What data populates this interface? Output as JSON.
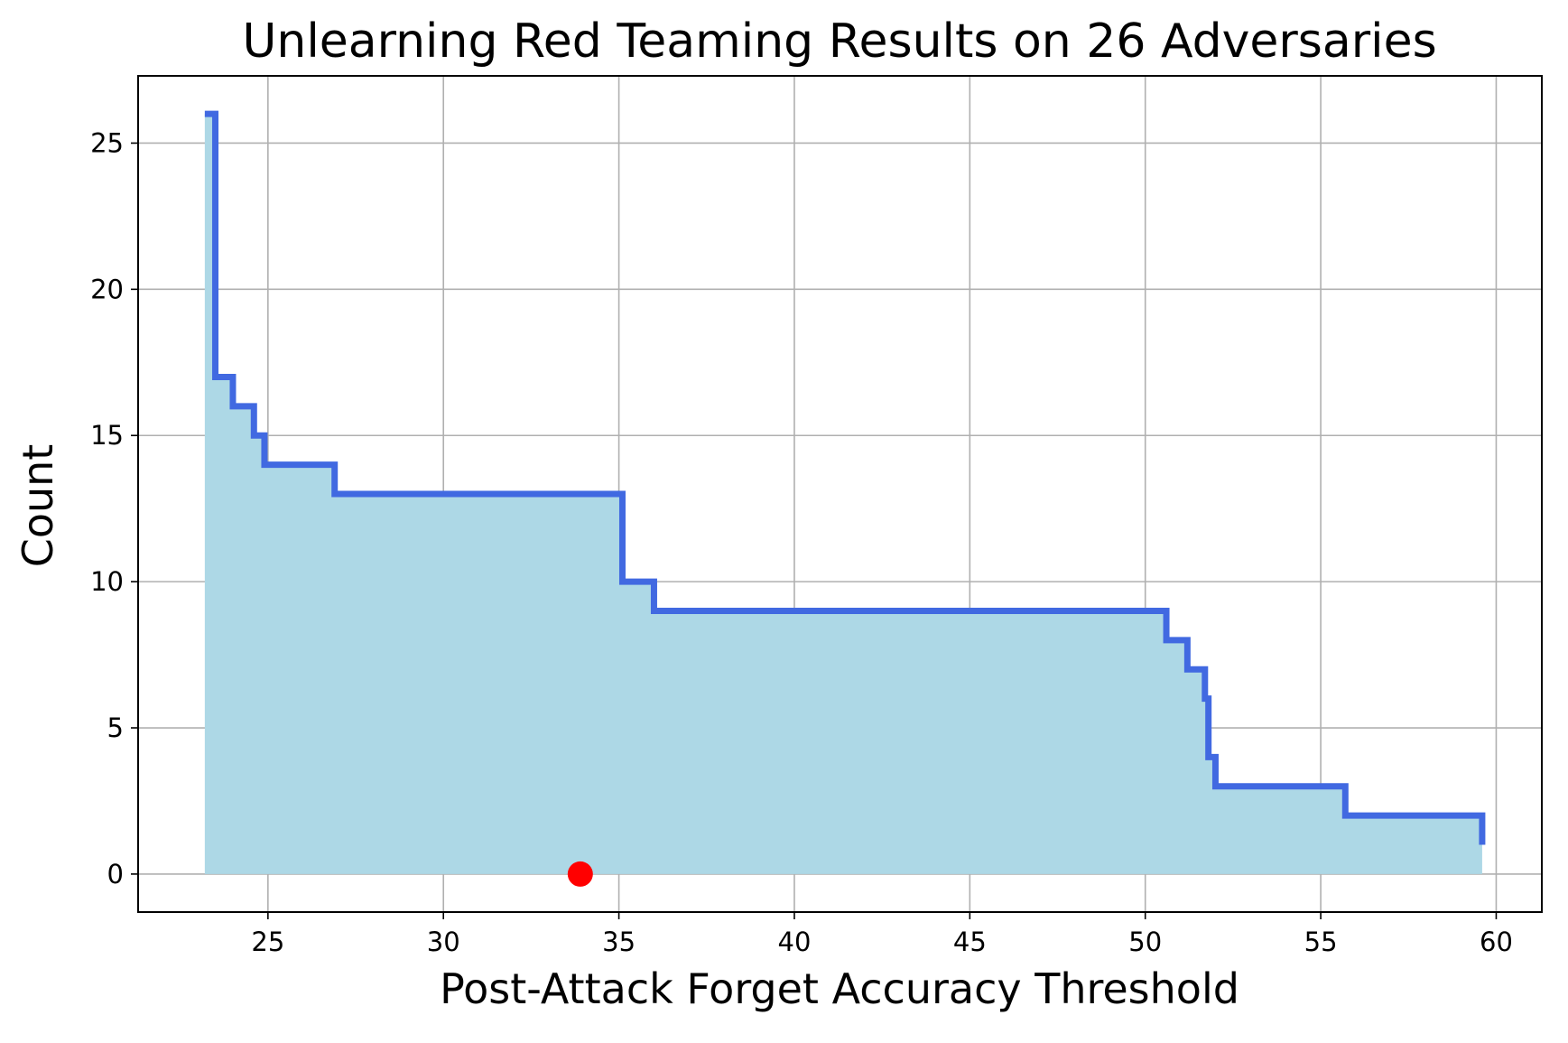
{
  "chart_data": {
    "type": "area",
    "title": "Unlearning Red Teaming Results on 26 Adversaries",
    "xlabel": "Post-Attack Forget Accuracy Threshold",
    "ylabel": "Count",
    "xlim": [
      21.3,
      61.3
    ],
    "ylim": [
      -1.3,
      27.3
    ],
    "xticks": [
      25,
      30,
      35,
      40,
      45,
      50,
      55,
      60
    ],
    "yticks": [
      0,
      5,
      10,
      15,
      20,
      25
    ],
    "grid": true,
    "series": [
      {
        "color": "#4169e1",
        "fill_color": "#add8e6",
        "steps": [
          {
            "x": 23.2,
            "y": 26
          },
          {
            "x": 23.5,
            "y": 17
          },
          {
            "x": 24.0,
            "y": 16
          },
          {
            "x": 24.6,
            "y": 15
          },
          {
            "x": 24.9,
            "y": 14
          },
          {
            "x": 26.9,
            "y": 13
          },
          {
            "x": 35.1,
            "y": 10
          },
          {
            "x": 36.0,
            "y": 9
          },
          {
            "x": 50.6,
            "y": 8
          },
          {
            "x": 51.2,
            "y": 7
          },
          {
            "x": 51.7,
            "y": 6
          },
          {
            "x": 51.8,
            "y": 4
          },
          {
            "x": 52.0,
            "y": 3
          },
          {
            "x": 55.7,
            "y": 2
          },
          {
            "x": 59.6,
            "y": 1
          }
        ]
      }
    ],
    "markers": [
      {
        "x": 33.9,
        "y": 0,
        "color": "#ff0000"
      }
    ]
  }
}
